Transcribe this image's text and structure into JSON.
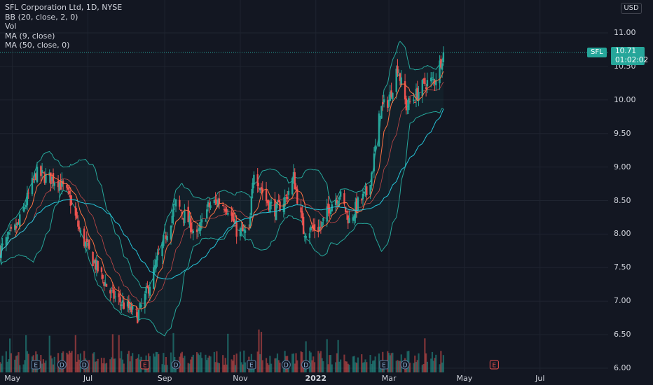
{
  "legend": {
    "title": "SFL Corporation Ltd, 1D, NYSE",
    "bb": "BB (20, close, 2, 0)",
    "vol": "Vol",
    "ma9": "MA (9, close)",
    "ma50": "MA (50, close, 0)"
  },
  "currency": "USD",
  "last_price": {
    "symbol": "SFL",
    "price": "10.71",
    "countdown": "01:02:02"
  },
  "colors": {
    "background": "#131722",
    "up": "#26a69a",
    "down": "#ef5350",
    "grid": "#1f2430",
    "bb": "#26a69a",
    "ma9": "#ff7043",
    "ma50": "#ef5350",
    "ma_long": "#26c6da"
  },
  "chart_data": {
    "type": "candlestick",
    "y_ticks": [
      "11.00",
      "10.50",
      "10.00",
      "9.50",
      "9.00",
      "8.50",
      "8.00",
      "7.50",
      "7.00",
      "6.50",
      "6.00"
    ],
    "ylim": [
      6.0,
      11.25
    ],
    "x_ticks": [
      "May",
      "Jul",
      "Sep",
      "Nov",
      "2022",
      "Mar",
      "May",
      "Jul"
    ],
    "x_tick_dates": [
      "2021-05-01",
      "2021-07-01",
      "2021-09-01",
      "2021-11-01",
      "2022-01-01",
      "2022-03-01",
      "2022-05-01",
      "2022-07-01"
    ],
    "date_range": [
      "2021-04-21",
      "2022-08-25"
    ],
    "grid": true,
    "events": [
      {
        "label": "E",
        "date": "2021-05-20",
        "type": "earnings"
      },
      {
        "label": "D",
        "date": "2021-06-10",
        "type": "dividend"
      },
      {
        "label": "D",
        "date": "2021-06-28",
        "type": "dividend"
      },
      {
        "label": "E",
        "date": "2021-08-16",
        "type": "earnings-upcoming"
      },
      {
        "label": "D",
        "date": "2021-09-10",
        "type": "dividend"
      },
      {
        "label": "E",
        "date": "2021-11-10",
        "type": "earnings"
      },
      {
        "label": "D",
        "date": "2021-12-08",
        "type": "dividend"
      },
      {
        "label": "D",
        "date": "2021-12-24",
        "type": "dividend"
      },
      {
        "label": "E",
        "date": "2022-02-25",
        "type": "earnings"
      },
      {
        "label": "D",
        "date": "2022-03-14",
        "type": "dividend"
      },
      {
        "label": "E",
        "date": "2022-05-25",
        "type": "earnings-upcoming"
      }
    ],
    "close_anchors": [
      {
        "date": "2021-04-21",
        "close": 7.75
      },
      {
        "date": "2021-05-06",
        "close": 8.15
      },
      {
        "date": "2021-05-20",
        "close": 8.9
      },
      {
        "date": "2021-05-28",
        "close": 8.85
      },
      {
        "date": "2021-06-07",
        "close": 8.8
      },
      {
        "date": "2021-06-16",
        "close": 8.55
      },
      {
        "date": "2021-06-25",
        "close": 8.0
      },
      {
        "date": "2021-07-08",
        "close": 7.5
      },
      {
        "date": "2021-07-20",
        "close": 7.1
      },
      {
        "date": "2021-07-30",
        "close": 6.95
      },
      {
        "date": "2021-08-10",
        "close": 6.78
      },
      {
        "date": "2021-08-17",
        "close": 7.1
      },
      {
        "date": "2021-08-25",
        "close": 7.55
      },
      {
        "date": "2021-09-03",
        "close": 8.05
      },
      {
        "date": "2021-09-10",
        "close": 8.45
      },
      {
        "date": "2021-09-20",
        "close": 8.2
      },
      {
        "date": "2021-09-27",
        "close": 7.95
      },
      {
        "date": "2021-10-06",
        "close": 8.4
      },
      {
        "date": "2021-10-14",
        "close": 8.5
      },
      {
        "date": "2021-10-22",
        "close": 8.4
      },
      {
        "date": "2021-10-29",
        "close": 8.05
      },
      {
        "date": "2021-11-08",
        "close": 8.0
      },
      {
        "date": "2021-11-12",
        "close": 8.95
      },
      {
        "date": "2021-11-22",
        "close": 8.5
      },
      {
        "date": "2021-11-30",
        "close": 8.35
      },
      {
        "date": "2021-12-08",
        "close": 8.55
      },
      {
        "date": "2021-12-14",
        "close": 8.85
      },
      {
        "date": "2021-12-22",
        "close": 8.05
      },
      {
        "date": "2022-01-05",
        "close": 8.1
      },
      {
        "date": "2022-01-13",
        "close": 8.45
      },
      {
        "date": "2022-01-20",
        "close": 8.6
      },
      {
        "date": "2022-01-28",
        "close": 8.2
      },
      {
        "date": "2022-02-04",
        "close": 8.45
      },
      {
        "date": "2022-02-11",
        "close": 8.6
      },
      {
        "date": "2022-02-16",
        "close": 9.0
      },
      {
        "date": "2022-02-22",
        "close": 9.85
      },
      {
        "date": "2022-03-01",
        "close": 10.0
      },
      {
        "date": "2022-03-08",
        "close": 10.5
      },
      {
        "date": "2022-03-15",
        "close": 9.9
      },
      {
        "date": "2022-03-22",
        "close": 10.05
      },
      {
        "date": "2022-03-30",
        "close": 10.25
      },
      {
        "date": "2022-04-07",
        "close": 10.3
      },
      {
        "date": "2022-04-14",
        "close": 10.71
      }
    ],
    "volume_ylim": [
      0,
      1000
    ],
    "volume_samples": [
      {
        "date": "2021-07-01",
        "volume": 430
      },
      {
        "date": "2021-11-12",
        "volume": 600
      },
      {
        "date": "2021-12-22",
        "volume": 620
      },
      {
        "date": "2022-02-22",
        "volume": 390
      },
      {
        "date": "2022-03-14",
        "volume": 350
      }
    ]
  }
}
